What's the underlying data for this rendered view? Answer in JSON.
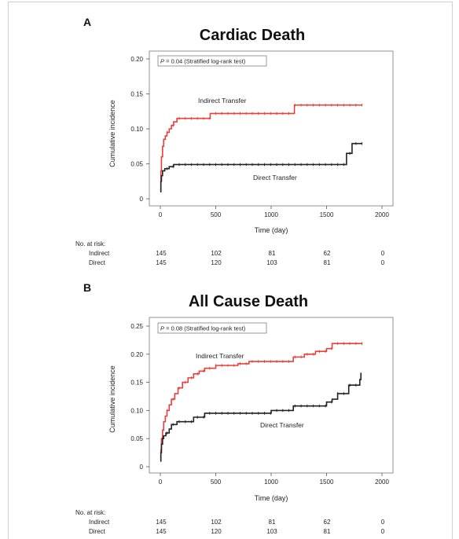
{
  "panels": [
    {
      "letter": "A",
      "title": "Cardiac Death",
      "annotation_p": "P",
      "annotation_rest": " = 0.04 (Stratified log-rank test)",
      "risk": {
        "header": "No. at risk:",
        "rows": [
          {
            "label": "Indirect",
            "values": [
              "145",
              "102",
              "81",
              "62",
              "0"
            ]
          },
          {
            "label": "Direct",
            "values": [
              "145",
              "120",
              "103",
              "81",
              "0"
            ]
          }
        ]
      }
    },
    {
      "letter": "B",
      "title": "All Cause Death",
      "annotation_p": "P",
      "annotation_rest": " = 0.08 (Stratified log-rank test)",
      "risk": {
        "header": "No. at risk:",
        "rows": [
          {
            "label": "Indirect",
            "values": [
              "145",
              "102",
              "81",
              "62",
              "0"
            ]
          },
          {
            "label": "Direct",
            "values": [
              "145",
              "120",
              "103",
              "81",
              "0"
            ]
          }
        ]
      }
    }
  ],
  "colors": {
    "indirect": "#e8403a",
    "direct": "#222222",
    "axis": "#555555"
  },
  "chart_data": [
    {
      "type": "line",
      "title": "Cardiac Death",
      "xlabel": "Time (day)",
      "ylabel": "Cumulative incidence",
      "xlim": [
        0,
        2000
      ],
      "ylim": [
        0,
        0.2
      ],
      "xticks": [
        "0",
        "500",
        "1000",
        "1500",
        "2000"
      ],
      "yticks": [
        "0",
        "0.05",
        "0.10",
        "0.15",
        "0.20"
      ],
      "annotations": [
        "Indirect Transfer",
        "Direct Transfer"
      ],
      "series": [
        {
          "name": "Indirect Transfer",
          "x": [
            0,
            5,
            10,
            20,
            30,
            45,
            60,
            80,
            100,
            120,
            150,
            420,
            450,
            1200,
            1210,
            1820
          ],
          "y": [
            0.01,
            0.04,
            0.06,
            0.075,
            0.085,
            0.09,
            0.095,
            0.1,
            0.105,
            0.11,
            0.115,
            0.115,
            0.122,
            0.122,
            0.134,
            0.134
          ]
        },
        {
          "name": "Direct Transfer",
          "x": [
            0,
            5,
            10,
            20,
            40,
            80,
            120,
            1670,
            1680,
            1720,
            1730,
            1820
          ],
          "y": [
            0.01,
            0.025,
            0.033,
            0.04,
            0.043,
            0.046,
            0.049,
            0.049,
            0.065,
            0.065,
            0.079,
            0.079
          ]
        }
      ]
    },
    {
      "type": "line",
      "title": "All Cause Death",
      "xlabel": "Time (day)",
      "ylabel": "Cumulative incidence",
      "xlim": [
        0,
        2000
      ],
      "ylim": [
        0,
        0.25
      ],
      "xticks": [
        "0",
        "500",
        "1000",
        "1500",
        "2000"
      ],
      "yticks": [
        "0",
        "0.05",
        "0.10",
        "0.15",
        "0.20",
        "0.25"
      ],
      "annotations": [
        "Indirect Transfer",
        "Direct Transfer"
      ],
      "series": [
        {
          "name": "Indirect Transfer",
          "x": [
            0,
            5,
            10,
            20,
            30,
            45,
            60,
            80,
            100,
            130,
            160,
            200,
            250,
            300,
            350,
            400,
            500,
            600,
            700,
            800,
            1000,
            1200,
            1300,
            1400,
            1500,
            1550,
            1820
          ],
          "y": [
            0.01,
            0.03,
            0.05,
            0.065,
            0.08,
            0.09,
            0.1,
            0.11,
            0.12,
            0.13,
            0.14,
            0.15,
            0.158,
            0.165,
            0.17,
            0.175,
            0.18,
            0.18,
            0.183,
            0.187,
            0.187,
            0.195,
            0.2,
            0.205,
            0.21,
            0.219,
            0.219
          ]
        },
        {
          "name": "Direct Transfer",
          "x": [
            0,
            5,
            10,
            20,
            30,
            50,
            80,
            100,
            150,
            300,
            400,
            700,
            1000,
            1050,
            1200,
            1500,
            1550,
            1600,
            1700,
            1800,
            1810
          ],
          "y": [
            0.01,
            0.025,
            0.04,
            0.05,
            0.055,
            0.06,
            0.067,
            0.075,
            0.08,
            0.088,
            0.095,
            0.095,
            0.1,
            0.1,
            0.108,
            0.115,
            0.12,
            0.13,
            0.145,
            0.155,
            0.167
          ]
        }
      ]
    }
  ]
}
